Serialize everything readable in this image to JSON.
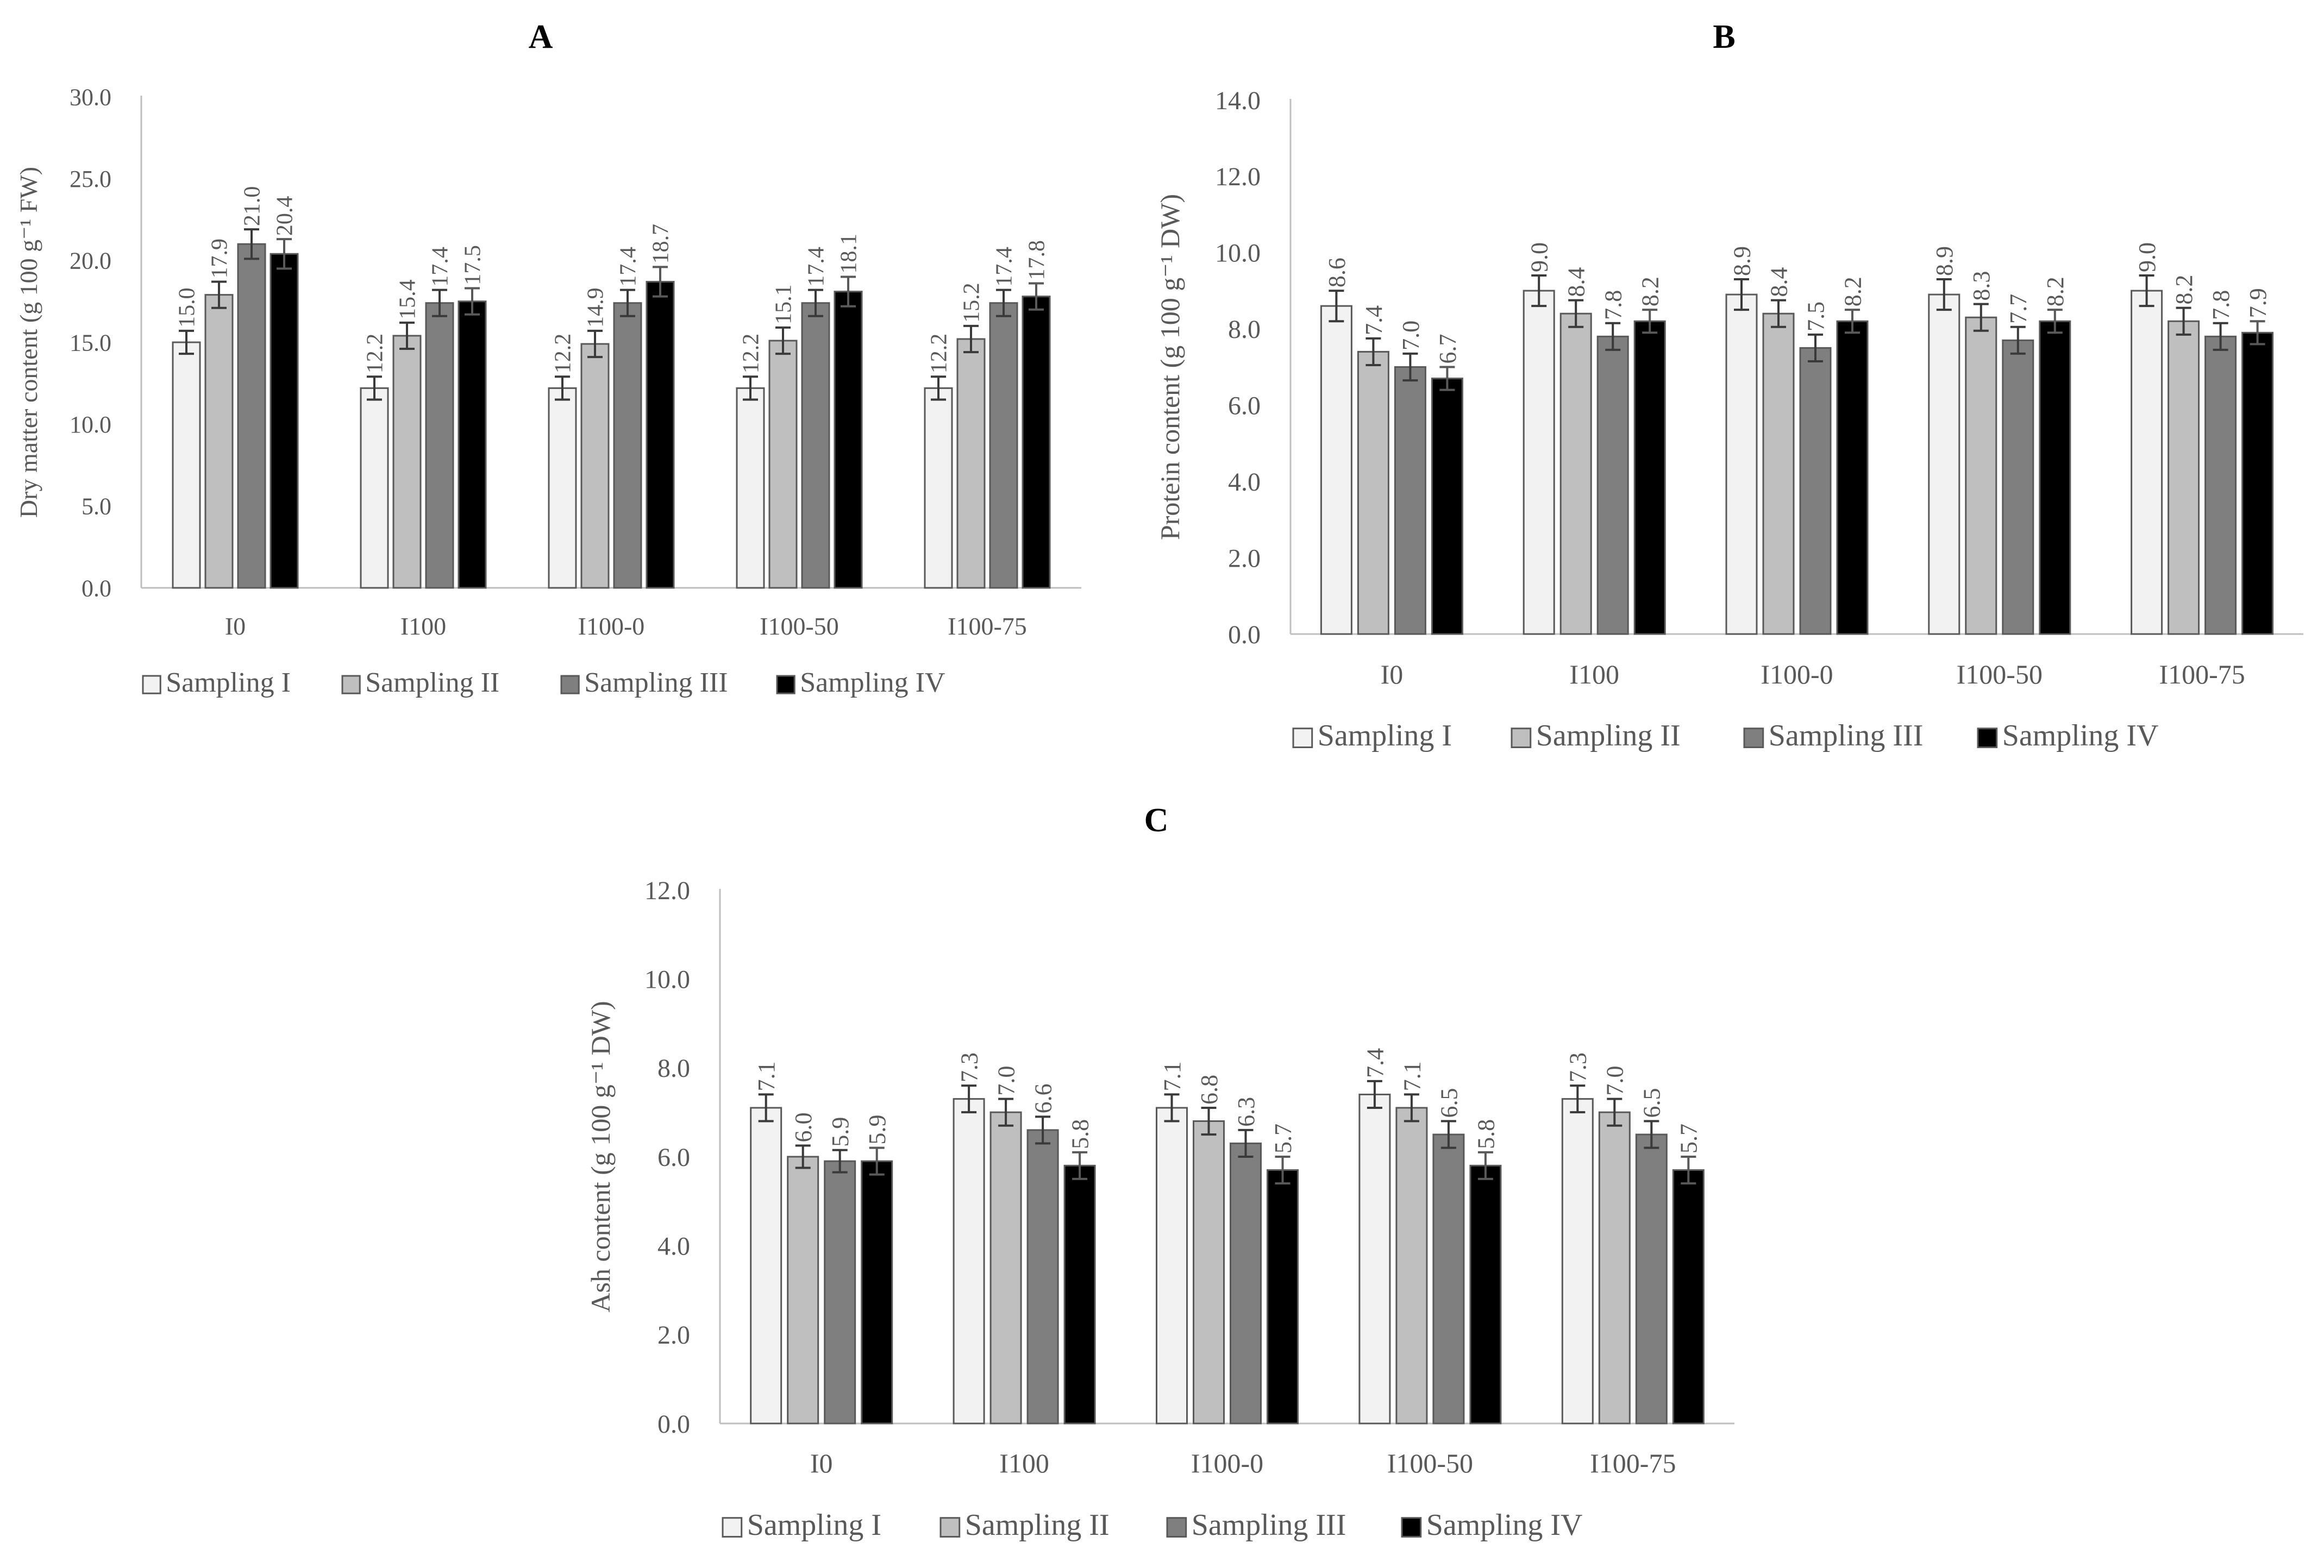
{
  "figure": {
    "legend_labels": [
      "Sampling I",
      "Sampling II",
      "Sampling III",
      "Sampling IV"
    ],
    "series_colors": [
      "#f2f2f2",
      "#bfbfbf",
      "#7f7f7f",
      "#000000"
    ],
    "bar_border_color": "#595959",
    "axis_color": "#bfbfbf",
    "text_color": "#595959"
  },
  "chart_data": [
    {
      "id": "A",
      "panel_label": "A",
      "type": "bar",
      "title": "",
      "ylabel": "Dry matter content (g 100 g⁻¹ FW)",
      "xlabel": "",
      "ylim": [
        0,
        30
      ],
      "yticks": [
        "0.0",
        "5.0",
        "10.0",
        "15.0",
        "20.0",
        "25.0",
        "30.0"
      ],
      "categories": [
        "I0",
        "I100",
        "I100-0",
        "I100-50",
        "I100-75"
      ],
      "series": [
        {
          "name": "Sampling I",
          "values": [
            15.0,
            12.2,
            12.2,
            12.2,
            12.2
          ],
          "labels": [
            "15.0",
            "12.2",
            "12.2",
            "12.2",
            "12.2"
          ],
          "error": [
            0.7,
            0.7,
            0.7,
            0.7,
            0.7
          ]
        },
        {
          "name": "Sampling II",
          "values": [
            17.9,
            15.4,
            14.9,
            15.1,
            15.2
          ],
          "labels": [
            "17.9",
            "15.4",
            "14.9",
            "15.1",
            "15.2"
          ],
          "error": [
            0.8,
            0.8,
            0.8,
            0.8,
            0.8
          ]
        },
        {
          "name": "Sampling III",
          "values": [
            21.0,
            17.4,
            17.4,
            17.4,
            17.4
          ],
          "labels": [
            "21.0",
            "17.4",
            "17.4",
            "17.4",
            "17.4"
          ],
          "error": [
            0.9,
            0.8,
            0.8,
            0.8,
            0.8
          ]
        },
        {
          "name": "Sampling IV",
          "values": [
            20.4,
            17.5,
            18.7,
            18.1,
            17.8
          ],
          "labels": [
            "20.4",
            "17.5",
            "18.7",
            "18.1",
            "17.8"
          ],
          "error": [
            0.9,
            0.8,
            0.9,
            0.9,
            0.8
          ]
        }
      ]
    },
    {
      "id": "B",
      "panel_label": "B",
      "type": "bar",
      "title": "",
      "ylabel": "Protein content (g 100 g⁻¹ DW)",
      "xlabel": "",
      "ylim": [
        0,
        14
      ],
      "yticks": [
        "0.0",
        "2.0",
        "4.0",
        "6.0",
        "8.0",
        "10.0",
        "12.0",
        "14.0"
      ],
      "categories": [
        "I0",
        "I100",
        "I100-0",
        "I100-50",
        "I100-75"
      ],
      "series": [
        {
          "name": "Sampling I",
          "values": [
            8.6,
            9.0,
            8.9,
            8.9,
            9.0
          ],
          "labels": [
            "8.6",
            "9.0",
            "8.9",
            "8.9",
            "9.0"
          ],
          "error": [
            0.4,
            0.4,
            0.4,
            0.4,
            0.4
          ]
        },
        {
          "name": "Sampling II",
          "values": [
            7.4,
            8.4,
            8.4,
            8.3,
            8.2
          ],
          "labels": [
            "7.4",
            "8.4",
            "8.4",
            "8.3",
            "8.2"
          ],
          "error": [
            0.35,
            0.35,
            0.35,
            0.35,
            0.35
          ]
        },
        {
          "name": "Sampling III",
          "values": [
            7.0,
            7.8,
            7.5,
            7.7,
            7.8
          ],
          "labels": [
            "7.0",
            "7.8",
            "7.5",
            "7.7",
            "7.8"
          ],
          "error": [
            0.35,
            0.35,
            0.35,
            0.35,
            0.35
          ]
        },
        {
          "name": "Sampling IV",
          "values": [
            6.7,
            8.2,
            8.2,
            8.2,
            7.9
          ],
          "labels": [
            "6.7",
            "8.2",
            "8.2",
            "8.2",
            "7.9"
          ],
          "error": [
            0.3,
            0.3,
            0.3,
            0.3,
            0.3
          ]
        }
      ]
    },
    {
      "id": "C",
      "panel_label": "C",
      "type": "bar",
      "title": "",
      "ylabel": "Ash content (g 100 g⁻¹ DW)",
      "xlabel": "",
      "ylim": [
        0,
        12
      ],
      "yticks": [
        "0.0",
        "2.0",
        "4.0",
        "6.0",
        "8.0",
        "10.0",
        "12.0"
      ],
      "categories": [
        "I0",
        "I100",
        "I100-0",
        "I100-50",
        "I100-75"
      ],
      "series": [
        {
          "name": "Sampling I",
          "values": [
            7.1,
            7.3,
            7.1,
            7.4,
            7.3
          ],
          "labels": [
            "7.1",
            "7.3",
            "7.1",
            "7.4",
            "7.3"
          ],
          "error": [
            0.3,
            0.3,
            0.3,
            0.3,
            0.3
          ]
        },
        {
          "name": "Sampling II",
          "values": [
            6.0,
            7.0,
            6.8,
            7.1,
            7.0
          ],
          "labels": [
            "6.0",
            "7.0",
            "6.8",
            "7.1",
            "7.0"
          ],
          "error": [
            0.25,
            0.3,
            0.3,
            0.3,
            0.3
          ]
        },
        {
          "name": "Sampling III",
          "values": [
            5.9,
            6.6,
            6.3,
            6.5,
            6.5
          ],
          "labels": [
            "5.9",
            "6.6",
            "6.3",
            "6.5",
            "6.5"
          ],
          "error": [
            0.25,
            0.3,
            0.3,
            0.3,
            0.3
          ]
        },
        {
          "name": "Sampling IV",
          "values": [
            5.9,
            5.8,
            5.7,
            5.8,
            5.7
          ],
          "labels": [
            "5.9",
            "5.8",
            "5.7",
            "5.8",
            "5.7"
          ],
          "error": [
            0.3,
            0.3,
            0.3,
            0.3,
            0.3
          ]
        }
      ]
    }
  ]
}
